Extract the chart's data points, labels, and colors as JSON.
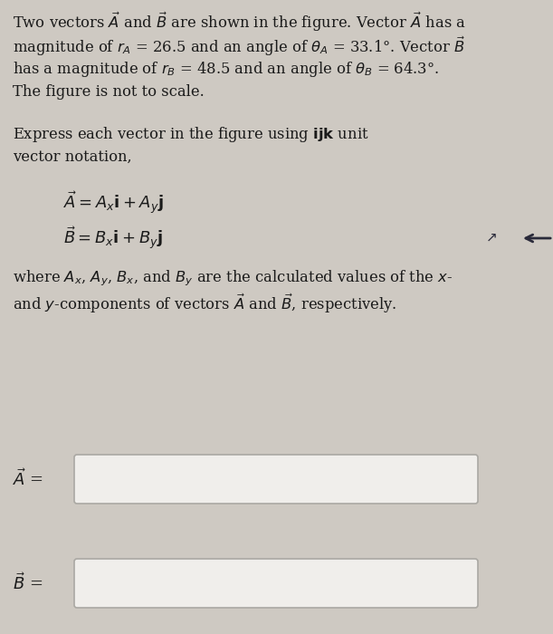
{
  "bg_color": "#cec9c2",
  "text_color": "#1a1a1a",
  "box_edge_color": "#aaa8a3",
  "box_fill_color": "#f0eeeb",
  "arrow_color": "#2a2a3a",
  "para1_lines": [
    "Two vectors $\\vec{A}$ and $\\vec{B}$ are shown in the figure. Vector $\\vec{A}$ has a",
    "magnitude of $r_A$ = 26.5 and an angle of $\\theta_A$ = 33.1°. Vector $\\vec{B}$",
    "has a magnitude of $r_B$ = 48.5 and an angle of $\\theta_B$ = 64.3°.",
    "The figure is not to scale."
  ],
  "para2_line1": "Express each vector in the figure using $\\mathbf{ijk}$ unit",
  "para2_line2": "vector notation,",
  "eq1": "$\\vec{A} = A_x\\mathbf{i} + A_y\\mathbf{j}$",
  "eq2": "$\\vec{B} = B_x\\mathbf{i} + B_y\\mathbf{j}$",
  "para3_line1": "where $A_x$, $A_y$, $B_x$, and $B_y$ are the calculated values of the $x$-",
  "para3_line2": "and $y$-components of vectors $\\vec{A}$ and $\\vec{B}$, respectively.",
  "label_A": "$\\vec{A}$ =",
  "label_B": "$\\vec{B}$ =",
  "fs_main": 11.8,
  "fs_eq": 13.0,
  "fs_label": 13.0
}
